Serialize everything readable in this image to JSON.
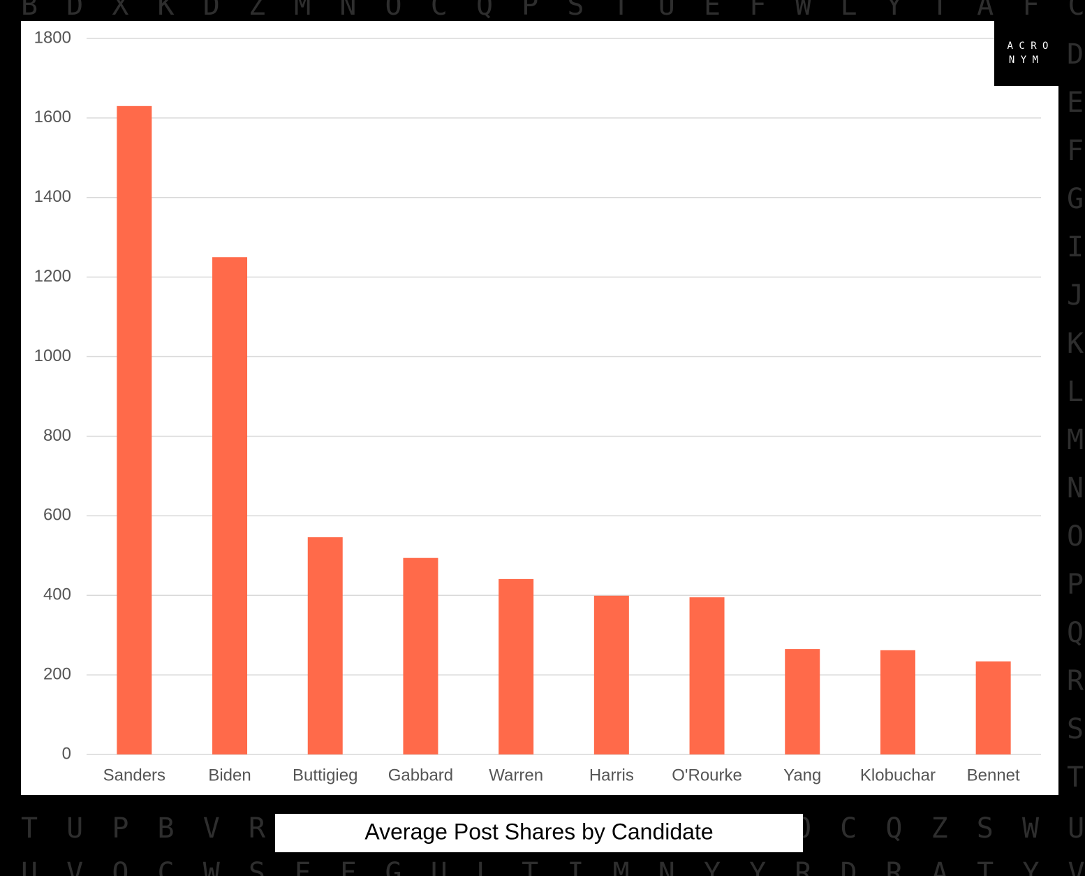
{
  "chart_data": {
    "type": "bar",
    "title": "Average Post Shares by Candidate",
    "categories": [
      "Sanders",
      "Biden",
      "Buttigieg",
      "Gabbard",
      "Warren",
      "Harris",
      "O'Rourke",
      "Yang",
      "Klobuchar",
      "Bennet"
    ],
    "values": [
      1630,
      1250,
      546,
      494,
      441,
      399,
      395,
      265,
      262,
      234
    ],
    "color": "#ff6a4a",
    "ylim": [
      0,
      1800
    ],
    "yticks": [
      0,
      200,
      400,
      600,
      800,
      1000,
      1200,
      1400,
      1600,
      1800
    ],
    "grid": true
  },
  "logo": [
    "A C R O",
    "N Y M"
  ],
  "background_letters": {
    "top": [
      "B",
      "D",
      "X",
      "K",
      "D",
      "Z",
      "M",
      "N",
      "O",
      "C",
      "Q",
      "P",
      "S",
      "T",
      "U",
      "E",
      "F",
      "W",
      "L",
      "Y",
      "T",
      "A",
      "F",
      "C"
    ],
    "right": [
      "D",
      "E",
      "F",
      "G",
      "I",
      "J",
      "K",
      "L",
      "M",
      "N",
      "O",
      "P",
      "Q",
      "R",
      "S",
      "T"
    ],
    "bottom_left": [
      "T",
      "U",
      "P",
      "B",
      "V",
      "R"
    ],
    "bottom_right": [
      "O",
      "C",
      "Q",
      "Z",
      "S",
      "W",
      "U"
    ],
    "bottom_last": [
      "U",
      "V",
      "O",
      "C",
      "W",
      "S",
      "F",
      "F",
      "G",
      "U",
      "L",
      "T",
      "I",
      "M",
      "N",
      "Y",
      "Y",
      "R",
      "D",
      "R",
      "A",
      "T",
      "Y",
      "V"
    ]
  }
}
